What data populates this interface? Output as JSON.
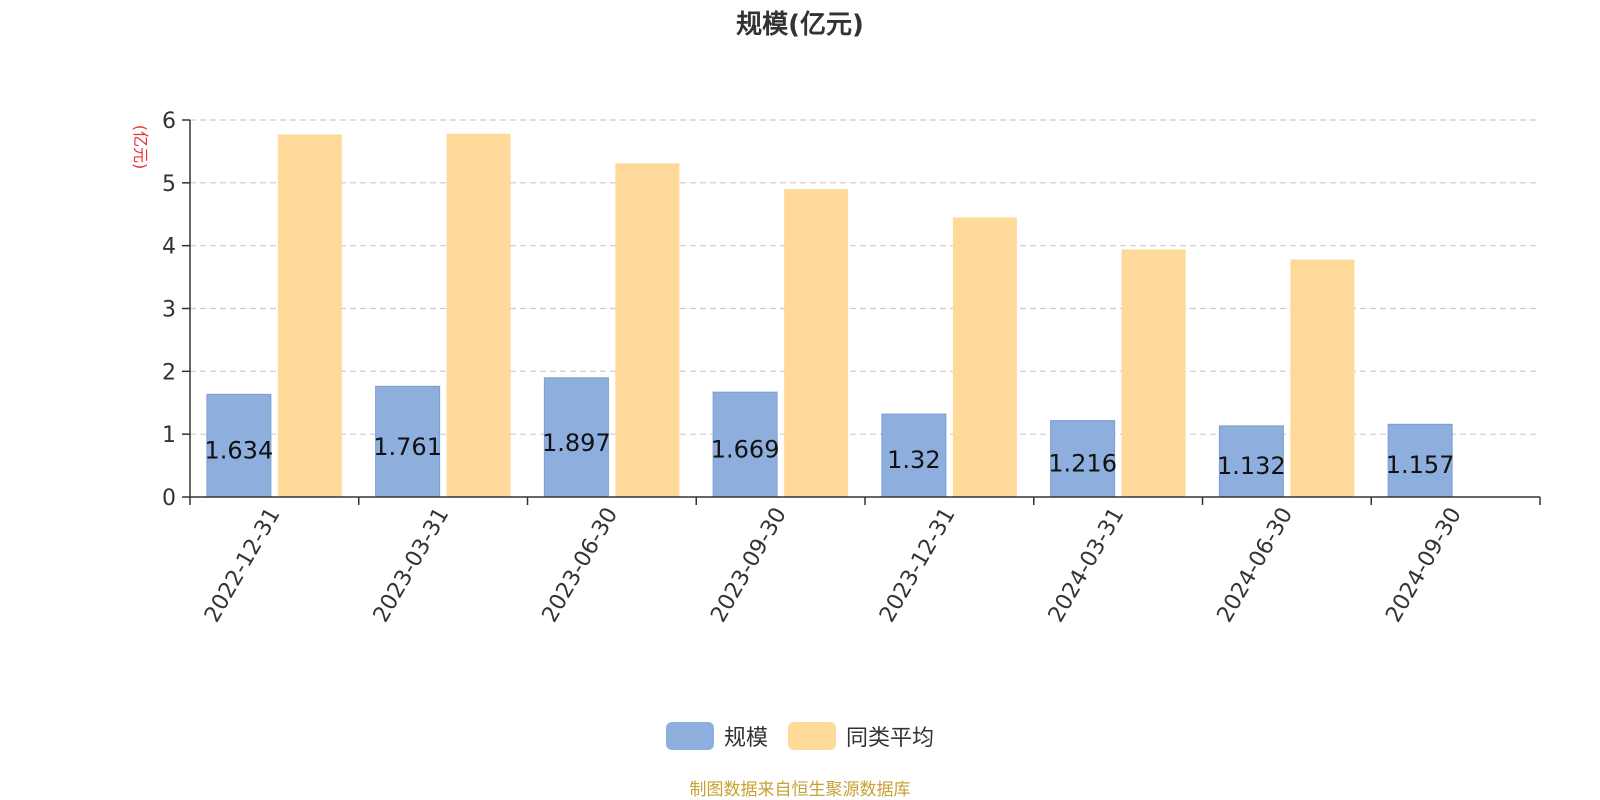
{
  "chart_data": {
    "type": "bar",
    "title": "规模(亿元)",
    "ylabel": "(亿元)",
    "xlabel": "",
    "categories": [
      "2022-12-31",
      "2023-03-31",
      "2023-06-30",
      "2023-09-30",
      "2023-12-31",
      "2024-03-31",
      "2024-06-30",
      "2024-09-30"
    ],
    "series": [
      {
        "name": "规模",
        "color": "#8eaedd",
        "values": [
          1.634,
          1.761,
          1.897,
          1.669,
          1.32,
          1.216,
          1.132,
          1.157
        ],
        "labels": [
          "1.634",
          "1.761",
          "1.897",
          "1.669",
          "1.32",
          "1.216",
          "1.132",
          "1.157"
        ]
      },
      {
        "name": "同类平均",
        "color": "#fed999",
        "values": [
          5.77,
          5.78,
          5.31,
          4.9,
          4.45,
          3.94,
          3.78,
          null
        ]
      }
    ],
    "ylim": [
      0,
      6
    ],
    "yticks": [
      0,
      1,
      2,
      3,
      4,
      5,
      6
    ],
    "grid": true,
    "legend_position": "bottom-center"
  },
  "source_note": "制图数据来自恒生聚源数据库",
  "colors": {
    "ylabel": "#e8312f",
    "source_note": "#c8a033",
    "axis": "#333333",
    "grid": "#cccccc"
  }
}
